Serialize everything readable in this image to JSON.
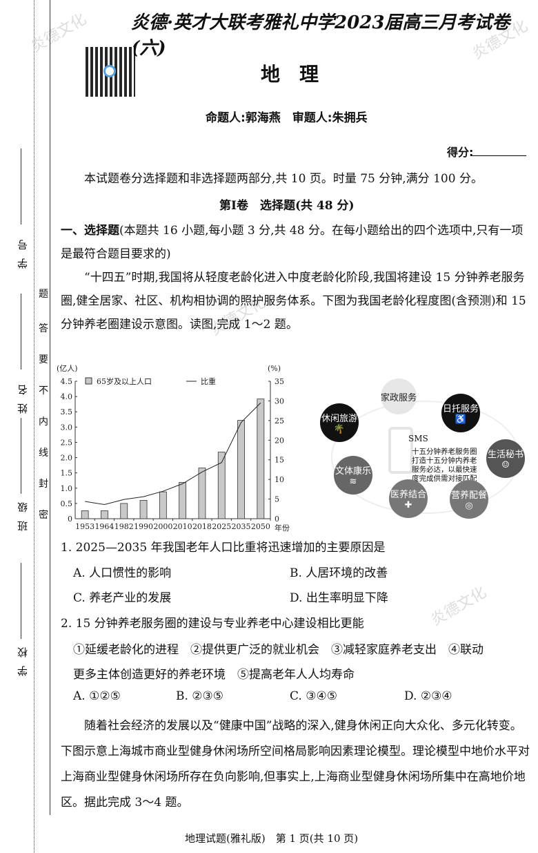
{
  "header": {
    "title": "炎德·英才大联考雅礼中学2023届高三月考试卷(六)",
    "subject": "地　理",
    "authors": "命题人:郭海燕　审题人:朱拥兵",
    "score_label": "得分:"
  },
  "margin": {
    "fields": [
      "学号",
      "姓名",
      "班级",
      "学校"
    ],
    "seal_text": [
      "题",
      "答",
      "要",
      "不",
      "内",
      "线",
      "封",
      "密"
    ]
  },
  "intro": "本试题卷分选择题和非选择题两部分,共 10 页。时量 75 分钟,满分 100 分。",
  "section": "第Ⅰ卷　选择题(共 48 分)",
  "part1": {
    "heading": "一、选择题",
    "text": "(本题共 16 小题,每小题 3 分,共 48 分。在每小题给出的四个选项中,只有一项是最符合题目要求的)"
  },
  "passage1": "“十四五”时期,我国将从轻度老龄化进入中度老龄化阶段,我国将建设 15 分钟养老服务圈,健全居家、社区、机构相协调的照护服务体系。下图为我国老龄化程度图(含预测)和 15 分钟养老圈建设示意图。读图,完成 1～2 题。",
  "chart_data": {
    "type": "bar+line",
    "left_unit": "(亿人)",
    "right_unit": "(%)",
    "xlabel": "年份",
    "categories": [
      "1953",
      "1964",
      "1982",
      "1990",
      "2000",
      "2010",
      "2018",
      "2025",
      "2035",
      "2050"
    ],
    "left_ylim": [
      0,
      4.5
    ],
    "left_ticks": [
      "0",
      "0.5",
      "1.0",
      "1.5",
      "2.0",
      "2.5",
      "3.0",
      "3.5",
      "4.0",
      "4.5"
    ],
    "right_ylim": [
      0,
      35
    ],
    "right_ticks": [
      "0",
      "5",
      "10",
      "15",
      "20",
      "25",
      "30",
      "35"
    ],
    "series": [
      {
        "name": "65岁及以上人口",
        "type": "bar",
        "values": [
          0.26,
          0.26,
          0.5,
          0.6,
          0.88,
          1.19,
          1.66,
          2.18,
          3.22,
          3.92
        ]
      },
      {
        "name": "比重",
        "type": "line",
        "values": [
          4.4,
          3.6,
          4.9,
          5.6,
          7.0,
          8.9,
          11.9,
          14.3,
          24.5,
          29.5
        ]
      }
    ],
    "grid": false,
    "legend": "top"
  },
  "diagram": {
    "center_label": "SMS",
    "center_text": [
      "十五分钟养老服务圈",
      "打造十五分钟内养老",
      "服务必达，以最快速",
      "度完成供需对接匹配"
    ],
    "nodes": [
      "家政服务",
      "日托服务",
      "休闲旅游",
      "生活秘书",
      "文体康乐",
      "医养结合",
      "营养配餐"
    ]
  },
  "q1": {
    "stem": "1. 2025—2035 年我国老年人口比重将迅速增加的主要原因是",
    "options": [
      "A. 人口惯性的影响",
      "B. 人居环境的改善",
      "C. 养老产业的发展",
      "D. 出生率明显下降"
    ]
  },
  "q2": {
    "stem": "2. 15 分钟养老服务圈的建设与专业养老中心建设相比更能",
    "items1": "①延缓老龄化的进程　②提供更广泛的就业机会　③减轻家庭养老支出　④联动",
    "items2": "更多主体创造更好的养老环境　⑤提高老年人人均寿命",
    "options": [
      "A. ①②⑤",
      "B. ②③⑤",
      "C. ③④⑤",
      "D. ②③④"
    ]
  },
  "passage2": "随着社会经济的发展以及“健康中国”战略的深入,健身休闲正向大众化、多元化转变。下图示意上海城市商业型健身休闲场所空间格局影响因素理论模型。理论模型中地价水平对上海商业型健身休闲场所存在负向影响,但事实上,上海商业型健身休闲场所集中在高地价地区。据此完成 3～4 题。",
  "footer": "地理试题(雅礼版)　第 1 页(共 10 页)",
  "watermark": "炎德文化"
}
